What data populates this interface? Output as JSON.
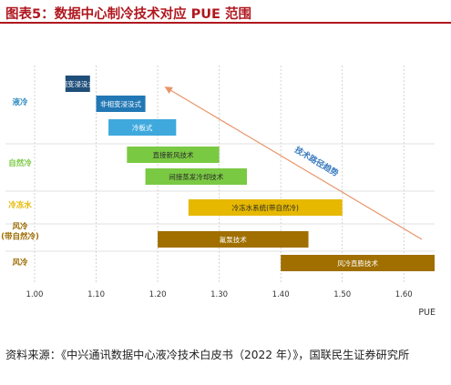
{
  "title": "图表5：数据中心制冷技术对应 PUE 范围",
  "source": "资料来源：《中兴通讯数据中心液冷技术白皮书（2022 年）》，国联民生证券研究所",
  "chart_data": {
    "type": "bar",
    "subtype": "floating-horizontal-bar",
    "title": "",
    "xlabel": "PUE",
    "ylabel": "",
    "xlim": [
      1.0,
      1.65
    ],
    "x_ticks": [
      "1.00",
      "1.10",
      "1.20",
      "1.30",
      "1.40",
      "1.50",
      "1.60"
    ],
    "grid": "vertical-dotted",
    "groups": [
      {
        "label": "液冷",
        "color": "#2e8bc0"
      },
      {
        "label": "自然冷",
        "color": "#7ac943"
      },
      {
        "label": "冷冻水",
        "color": "#e6b800"
      },
      {
        "label": "风冷\n(带自然冷)",
        "color": "#9c6b00"
      },
      {
        "label": "风冷",
        "color": "#9c6b00"
      }
    ],
    "bars": [
      {
        "label": "相变浸没式",
        "start": 1.05,
        "end": 1.09,
        "group": "液冷",
        "color": "#1f4e79"
      },
      {
        "label": "非相变浸没式",
        "start": 1.1,
        "end": 1.18,
        "group": "液冷",
        "color": "#2278b5"
      },
      {
        "label": "冷板式",
        "start": 1.12,
        "end": 1.23,
        "group": "液冷",
        "color": "#3fa9dd"
      },
      {
        "label": "直接新风技术",
        "start": 1.15,
        "end": 1.3,
        "group": "自然冷",
        "color": "#7ac943"
      },
      {
        "label": "间接蒸发冷却技术",
        "start": 1.18,
        "end": 1.345,
        "group": "自然冷",
        "color": "#7ac943"
      },
      {
        "label": "冷冻水系统(带自然冷)",
        "start": 1.25,
        "end": 1.5,
        "group": "冷冻水",
        "color": "#e6b800"
      },
      {
        "label": "氟泵技术",
        "start": 1.2,
        "end": 1.445,
        "group": "风冷\n(带自然冷)",
        "color": "#a06f00"
      },
      {
        "label": "风冷直膨技术",
        "start": 1.4,
        "end": 1.65,
        "group": "风冷",
        "color": "#a06f00"
      }
    ],
    "annotations": [
      {
        "text": "技术路径趋势",
        "type": "arrow",
        "from": [
          1.64,
          4.5
        ],
        "to": [
          1.205,
          -0.2
        ],
        "color": "#3a7bbf"
      }
    ]
  }
}
